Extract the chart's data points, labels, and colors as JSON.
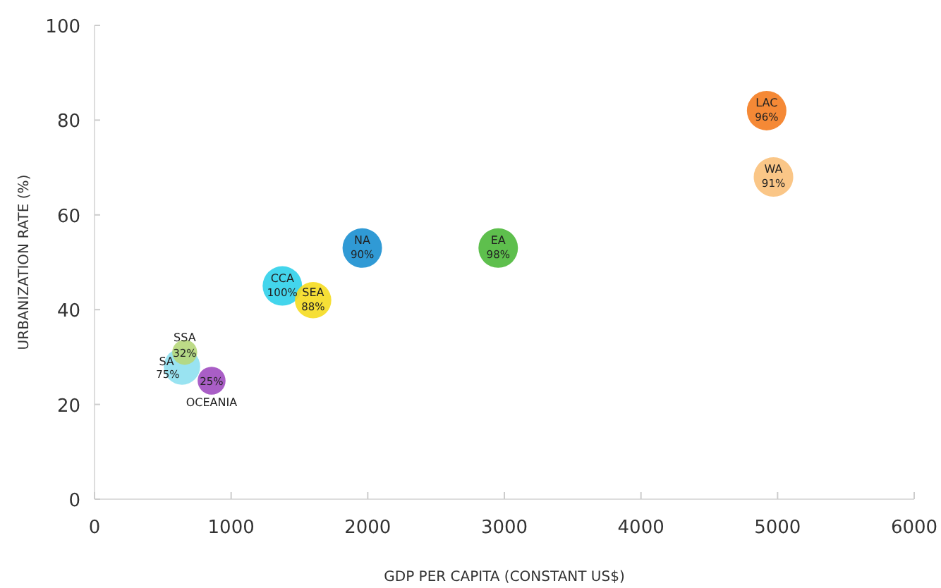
{
  "chart_data": {
    "type": "bubble",
    "xlabel": "GDP PER CAPITA (CONSTANT US$)",
    "ylabel": "URBANIZATION RATE (%)",
    "xlim": [
      0,
      6000
    ],
    "xticks": [
      0,
      1000,
      2000,
      3000,
      4000,
      5000,
      6000
    ],
    "ylim": [
      0,
      100
    ],
    "yticks": [
      0,
      20,
      40,
      60,
      80,
      100
    ],
    "grid": false,
    "series": [
      {
        "name": "LAC",
        "color": "#f47c20",
        "x": [
          4920
        ],
        "values": [
          82
        ],
        "sizes": [
          1
        ]
      },
      {
        "name": "WA",
        "color": "#f9c07a",
        "x": [
          4970
        ],
        "values": [
          68
        ],
        "sizes": [
          1
        ]
      },
      {
        "name": "NA",
        "color": "#1a8fd0",
        "x": [
          1960
        ],
        "values": [
          53
        ],
        "sizes": [
          1
        ]
      },
      {
        "name": "EA",
        "color": "#4cb83a",
        "x": [
          2955
        ],
        "values": [
          53
        ],
        "sizes": [
          1
        ]
      },
      {
        "name": "CCA",
        "color": "#2fd0ea",
        "x": [
          1375
        ],
        "values": [
          45
        ],
        "sizes": [
          1
        ]
      },
      {
        "name": "SEA",
        "color": "#f5dc20",
        "x": [
          1600
        ],
        "values": [
          42
        ],
        "sizes": [
          0.85
        ]
      },
      {
        "name": "SA",
        "color": "#8ee0f0",
        "x": [
          640
        ],
        "values": [
          28
        ],
        "sizes": [
          0.85
        ]
      },
      {
        "name": "SSA",
        "color": "#b6d77a",
        "x": [
          660
        ],
        "values": [
          31
        ],
        "sizes": [
          0.4
        ]
      },
      {
        "name": "OCEANIA",
        "color": "#a04cc0",
        "x": [
          857
        ],
        "values": [
          25
        ],
        "sizes": [
          0.5
        ]
      }
    ],
    "annotations": [
      {
        "text": "96%",
        "x": 4920,
        "y": 82
      },
      {
        "text": "91%",
        "x": 4970,
        "y": 68
      },
      {
        "text": "90%",
        "x": 1960,
        "y": 53
      },
      {
        "text": "98%",
        "x": 2955,
        "y": 53
      },
      {
        "text": "100%",
        "x": 1375,
        "y": 45
      },
      {
        "text": "88%",
        "x": 1600,
        "y": 42
      },
      {
        "text": "75%",
        "x": 640,
        "y": 28
      },
      {
        "text": "32%",
        "x": 660,
        "y": 31
      },
      {
        "text": "25%",
        "x": 857,
        "y": 25
      }
    ]
  }
}
